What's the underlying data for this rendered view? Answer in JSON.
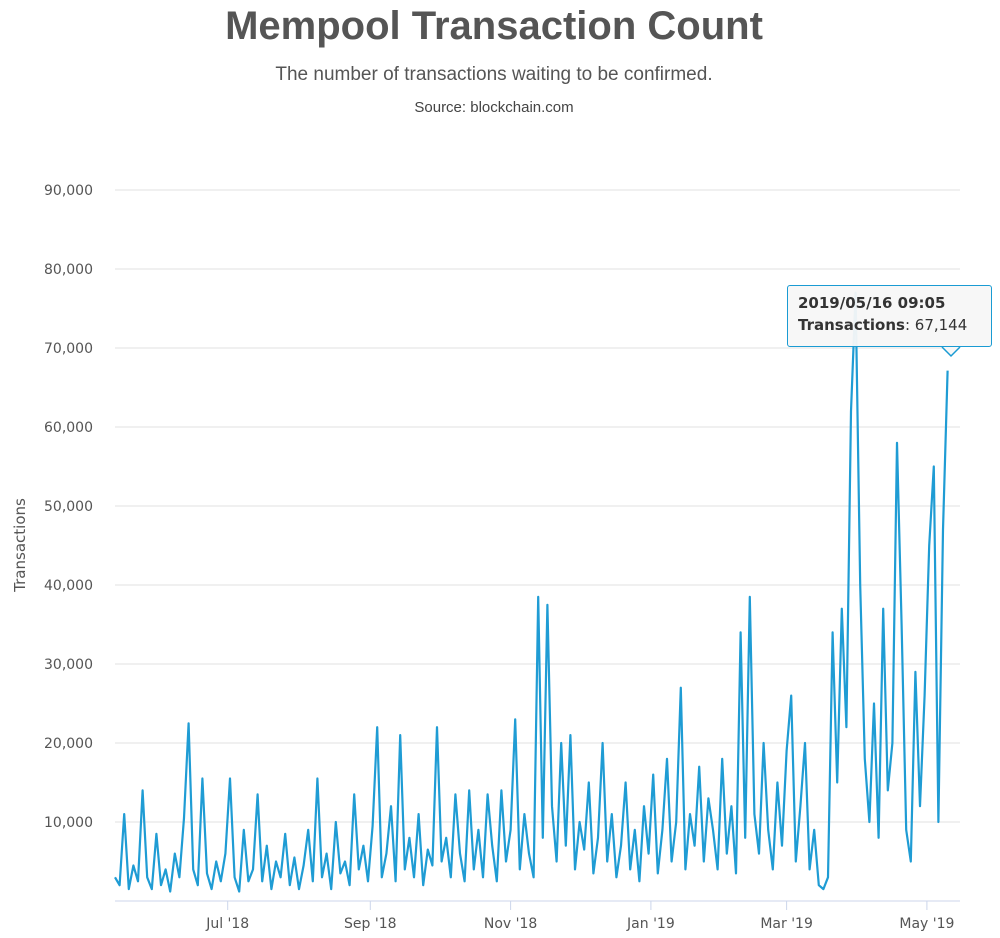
{
  "chart_data": {
    "type": "line",
    "title": "Mempool Transaction Count",
    "subtitle": "The number of transactions waiting to be confirmed.",
    "source": "Source: blockchain.com",
    "ylabel": "Transactions",
    "xlabel": "",
    "ylim": [
      0,
      90000
    ],
    "yticks": [
      "10,000",
      "20,000",
      "30,000",
      "40,000",
      "50,000",
      "60,000",
      "70,000",
      "80,000",
      "90,000"
    ],
    "ytick_values": [
      10000,
      20000,
      30000,
      40000,
      50000,
      60000,
      70000,
      80000,
      90000
    ],
    "xticks": [
      "Jul '18",
      "Sep '18",
      "Nov '18",
      "Jan '19",
      "Mar '19",
      "May '19"
    ],
    "xtick_day_offsets": [
      49,
      111,
      172,
      233,
      292,
      353
    ],
    "x_start": "2018-05-13",
    "x_step_days": 2,
    "grid": true,
    "legend": "none",
    "color": "#1f9cd4",
    "series": [
      {
        "name": "Transactions",
        "values": [
          3000,
          2000,
          11000,
          1500,
          4500,
          2500,
          14000,
          3000,
          1500,
          8500,
          2000,
          4000,
          1200,
          6000,
          3000,
          10500,
          22500,
          4000,
          2000,
          15500,
          3500,
          1500,
          5000,
          2500,
          6000,
          15500,
          3000,
          1200,
          9000,
          2500,
          4000,
          13500,
          2500,
          7000,
          1500,
          5000,
          3000,
          8500,
          2000,
          5500,
          1500,
          4500,
          9000,
          2500,
          15500,
          3000,
          6000,
          1500,
          10000,
          3500,
          5000,
          2000,
          13500,
          4000,
          7000,
          2500,
          9500,
          22000,
          3000,
          6000,
          12000,
          2500,
          21000,
          4000,
          8000,
          3000,
          11000,
          2000,
          6500,
          4500,
          22000,
          5000,
          8000,
          3000,
          13500,
          6000,
          2500,
          14000,
          4000,
          9000,
          3000,
          13500,
          7000,
          2500,
          14000,
          5000,
          9000,
          23000,
          4000,
          11000,
          6000,
          3000,
          38500,
          8000,
          37500,
          12000,
          5000,
          20000,
          7000,
          21000,
          4000,
          10000,
          6500,
          15000,
          3500,
          8000,
          20000,
          5000,
          11000,
          3000,
          7000,
          15000,
          4000,
          9000,
          2500,
          12000,
          6000,
          16000,
          3500,
          9000,
          18000,
          5000,
          10000,
          27000,
          4000,
          11000,
          7000,
          17000,
          5000,
          13000,
          9000,
          4000,
          18000,
          6000,
          12000,
          3500,
          34000,
          8000,
          38500,
          11000,
          6000,
          20000,
          9000,
          4000,
          15000,
          7000,
          19000,
          26000,
          5000,
          12000,
          20000,
          4000,
          9000,
          2000,
          1500,
          3000,
          34000,
          15000,
          37000,
          22000,
          62000,
          77000,
          40000,
          18000,
          10000,
          25000,
          8000,
          37000,
          14000,
          20000,
          58000,
          35000,
          9000,
          5000,
          29000,
          12000,
          26000,
          45000,
          55000,
          10000,
          47000,
          67144
        ]
      }
    ],
    "tooltip": {
      "date": "2019/05/16 09:05",
      "label": "Transactions",
      "value": "67,144"
    }
  }
}
